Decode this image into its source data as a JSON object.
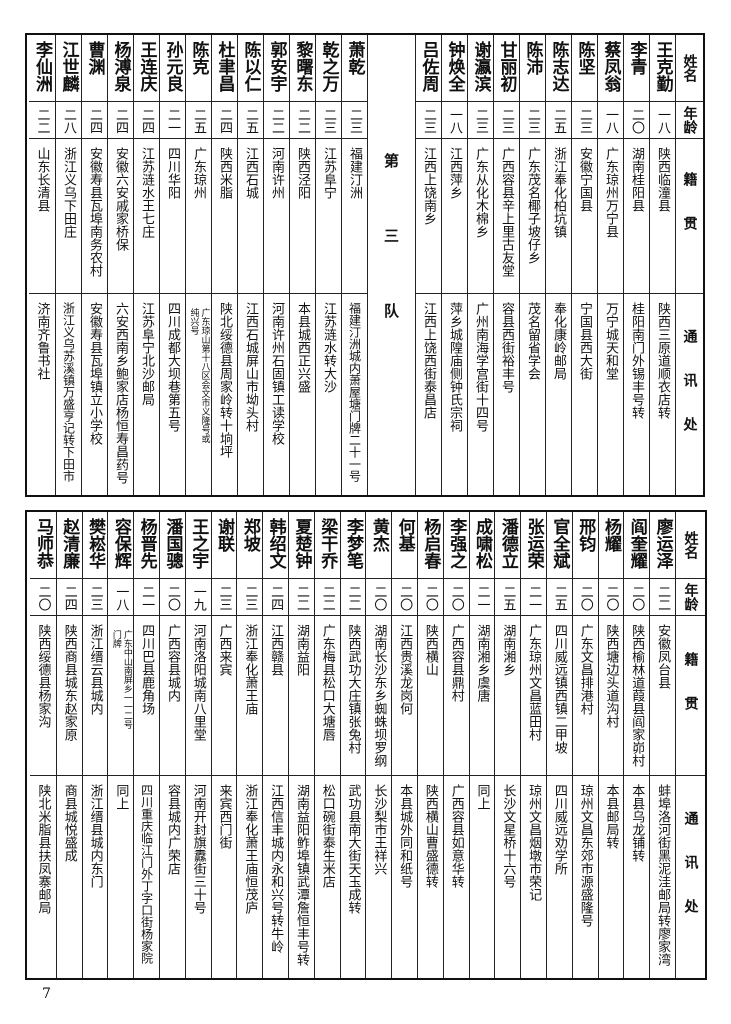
{
  "headers": {
    "name": "姓名",
    "age": "年龄",
    "origin": "籍贯",
    "address": "通讯处"
  },
  "top": {
    "group_right": [
      {
        "name": "王克勤",
        "age": "一八",
        "origin": "陕西临潼县",
        "address": "陕西三原道顺衣店转"
      },
      {
        "name": "李青",
        "age": "二〇",
        "origin": "湖南桂阳县",
        "address": "桂阳南门外锡丰号转"
      },
      {
        "name": "蔡凤翁",
        "age": "一八",
        "origin": "广东琼州万宁县",
        "address": "万宁城天和堂"
      },
      {
        "name": "陈坚",
        "age": "二三",
        "origin": "安徽宁国县",
        "address": "宁国县西大街"
      },
      {
        "name": "陈志达",
        "age": "二五",
        "origin": "浙江奉化柏坑镇",
        "address": "奉化康岭邮局"
      },
      {
        "name": "陈沛",
        "age": "二三",
        "origin": "广东茂名椰子坡仔乡",
        "address": "茂名留省学会"
      },
      {
        "name": "甘丽初",
        "age": "二三",
        "origin": "广西容县辛上里古友堂",
        "address": "容县西街裕丰号"
      },
      {
        "name": "谢瀛滨",
        "age": "二三",
        "origin": "广东从化木棉乡",
        "address": "广州南海学宫街十四号"
      },
      {
        "name": "钟焕全",
        "age": "一八",
        "origin": "江西萍乡",
        "address": "萍乡城隍庙侧钟氏宗祠"
      },
      {
        "name": "吕佐周",
        "age": "二三",
        "origin": "江西上饶南乡",
        "address": "江西上饶西街泰昌店"
      }
    ],
    "divider": "第三队",
    "group_left": [
      {
        "name": "萧乾",
        "age": "二三",
        "origin": "福建汀洲",
        "address": "福建汀洲城内萧屋塘门牌二十一号"
      },
      {
        "name": "乾之万",
        "age": "二三",
        "origin": "江苏阜宁",
        "address": "江苏涟水转大沙"
      },
      {
        "name": "黎曙东",
        "age": "二二",
        "origin": "陕西泾阳",
        "address": "本县城西正兴盛"
      },
      {
        "name": "郭安宇",
        "age": "二二",
        "origin": "河南许州",
        "address": "河南许州石固镇工读学校"
      },
      {
        "name": "陈以仁",
        "age": "二五",
        "origin": "江西石城",
        "address": "江西石城屏山市坳头村"
      },
      {
        "name": "杜聿昌",
        "age": "二四",
        "origin": "陕西米脂",
        "address": "陕北绥德县周家岭转十垧坪"
      },
      {
        "name": "陈克",
        "age": "二五",
        "origin": "广东琼州",
        "address": [
          "广东琼山第十八区会文市义隆号或",
          "纯兴号"
        ]
      },
      {
        "name": "孙元良",
        "age": "二一",
        "origin": "四川华阳",
        "address": "四川成都大坝巷第五号"
      },
      {
        "name": "王连庆",
        "age": "二四",
        "origin": "江苏涟水王七庄",
        "address": "江苏阜宁北沙邮局"
      },
      {
        "name": "杨溥泉",
        "age": "二四",
        "origin": "安徽六安戚家桥保",
        "address": "六安西南乡鲍家店杨恒寿昌药号"
      },
      {
        "name": "曹渊",
        "age": "二四",
        "origin": "安徽寿县瓦埠南务农村",
        "address": "安徽寿县瓦埠镇立小学校"
      },
      {
        "name": "江世麟",
        "age": "二八",
        "origin": "浙江义乌下田庄",
        "address": "浙江义乌苏溪镇万盛亨记转下田市"
      },
      {
        "name": "李仙洲",
        "age": "二二",
        "origin": "山东长清县",
        "address": "济南齐鲁书社"
      }
    ]
  },
  "bottom": {
    "people": [
      {
        "name": "廖运泽",
        "age": "二二",
        "origin": "安徽凤台县",
        "address": "蚌埠洛河街黑泥洼邮局转廖家湾"
      },
      {
        "name": "阎奎耀",
        "age": "二〇",
        "origin": "陕西榆林道葭县阎家峁村",
        "address": "本县乌龙铺转"
      },
      {
        "name": "杨耀",
        "age": "二〇",
        "origin": "陕西塘边头道沟村",
        "address": "本县邮局转"
      },
      {
        "name": "邢钧",
        "age": "二〇",
        "origin": "广东文昌排港村",
        "address": "琼州文昌东郊市源盛隆号"
      },
      {
        "name": "官全斌",
        "age": "二五",
        "origin": "四川威远镇西镇二甲坡",
        "address": "四川威远劝学所"
      },
      {
        "name": "张运荣",
        "age": "二一",
        "origin": "广东琼州文昌蓝田村",
        "address": "琼州文昌烟墩市荣记"
      },
      {
        "name": "潘德立",
        "age": "二五",
        "origin": "湖南湘乡",
        "address": "长沙文星桥十六号"
      },
      {
        "name": "成啸松",
        "age": "二一",
        "origin": "湖南湘乡虞唐",
        "address": "同上"
      },
      {
        "name": "李强之",
        "age": "二〇",
        "origin": "广西容县鼎村",
        "address": "广西容县如意华转"
      },
      {
        "name": "杨启春",
        "age": "二〇",
        "origin": "陕西横山",
        "address": "陕西横山曹盛德转"
      },
      {
        "name": "何基",
        "age": "二〇",
        "origin": "江西贵溪龙岗何",
        "address": "本县城外同和纸号"
      },
      {
        "name": "黄杰",
        "age": "二〇",
        "origin": "湖南长沙东乡蜘蛛坝罗纲",
        "address": "长沙梨市王祥兴"
      },
      {
        "name": "李梦笔",
        "age": "二二",
        "origin": "陕西武功大庄镇张兔村",
        "address": "武功县南大街天玉成转"
      },
      {
        "name": "梁干乔",
        "age": "二二",
        "origin": "广东梅县松口大塘唇",
        "address": "松口碗街泰生米店"
      },
      {
        "name": "夏楚钟",
        "age": "二二",
        "origin": "湖南益阳",
        "address": "湖南益阳鲊埠镇武潭詹恒丰号转"
      },
      {
        "name": "韩绍文",
        "age": "二四",
        "origin": "江西赣县",
        "address": "江西信丰城内永和兴号转牛岭"
      },
      {
        "name": "郑坡",
        "age": "二三",
        "origin": "浙江奉化萧王庙",
        "address": "浙江奉化萧王庙恒茂庐"
      },
      {
        "name": "谢联",
        "age": "二三",
        "origin": "广西来宾",
        "address": "来宾西门街"
      },
      {
        "name": "王之宇",
        "age": "一九",
        "origin": "河南洛阳城南八里堂",
        "address": "河南开封旗纛街三十号"
      },
      {
        "name": "潘国骢",
        "age": "二〇",
        "origin": "广西容县城内",
        "address": "容县城内广荣店"
      },
      {
        "name": "杨晋先",
        "age": "二一",
        "origin": "四川巴县鹿角场",
        "address": "四川重庆临江门外丁字口街杨家院"
      },
      {
        "name": "容保辉",
        "age": "一八",
        "origin": [
          "广东中山南屏乡一一二号",
          "门牌"
        ],
        "address": "同上"
      },
      {
        "name": "樊崧华",
        "age": "二三",
        "origin": "浙江缙云县城内",
        "address": "浙江缙县城内东门"
      },
      {
        "name": "赵清廉",
        "age": "二四",
        "origin": "陕西商县城东赵家原",
        "address": "商县城悦盛成"
      },
      {
        "name": "马师恭",
        "age": "二〇",
        "origin": "陕西绥德县杨家沟",
        "address": "陕北米脂县扶凤寨邮局"
      }
    ]
  },
  "page_number": "7"
}
